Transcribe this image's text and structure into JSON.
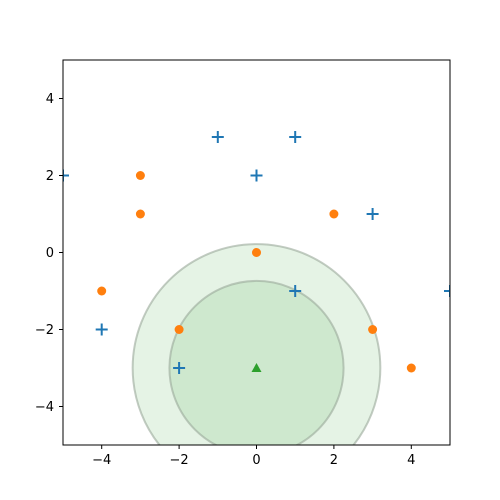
{
  "chart_data": {
    "type": "scatter",
    "title": "",
    "xlabel": "",
    "ylabel": "",
    "xlim": [
      -5,
      5
    ],
    "ylim": [
      -5,
      5
    ],
    "xticks": [
      -4,
      -2,
      0,
      2,
      4
    ],
    "yticks": [
      4,
      2,
      0,
      -2,
      -4
    ],
    "grid": false,
    "series": [
      {
        "marker": "plus",
        "color": "#1f77b4",
        "points": [
          [
            -1,
            3
          ],
          [
            1,
            3
          ],
          [
            -5,
            2
          ],
          [
            0,
            2
          ],
          [
            3,
            1
          ],
          [
            1,
            -1
          ],
          [
            5,
            -1
          ],
          [
            -4,
            -2
          ],
          [
            -2,
            -3
          ]
        ]
      },
      {
        "marker": "circle",
        "color": "#ff7f0e",
        "points": [
          [
            -3,
            2
          ],
          [
            -3,
            1
          ],
          [
            2,
            1
          ],
          [
            0,
            0
          ],
          [
            -4,
            -1
          ],
          [
            -2,
            -2
          ],
          [
            3,
            -2
          ],
          [
            4,
            -3
          ]
        ]
      },
      {
        "marker": "triangle",
        "color": "#2ca02c",
        "points": [
          [
            0,
            -3
          ]
        ]
      }
    ],
    "circles": [
      {
        "center": [
          0,
          -3
        ],
        "radius": 3.2,
        "fill": "#2ca02c",
        "opacity": 0.12
      },
      {
        "center": [
          0,
          -3
        ],
        "radius": 2.25,
        "fill": "#2ca02c",
        "opacity": 0.12
      }
    ]
  }
}
